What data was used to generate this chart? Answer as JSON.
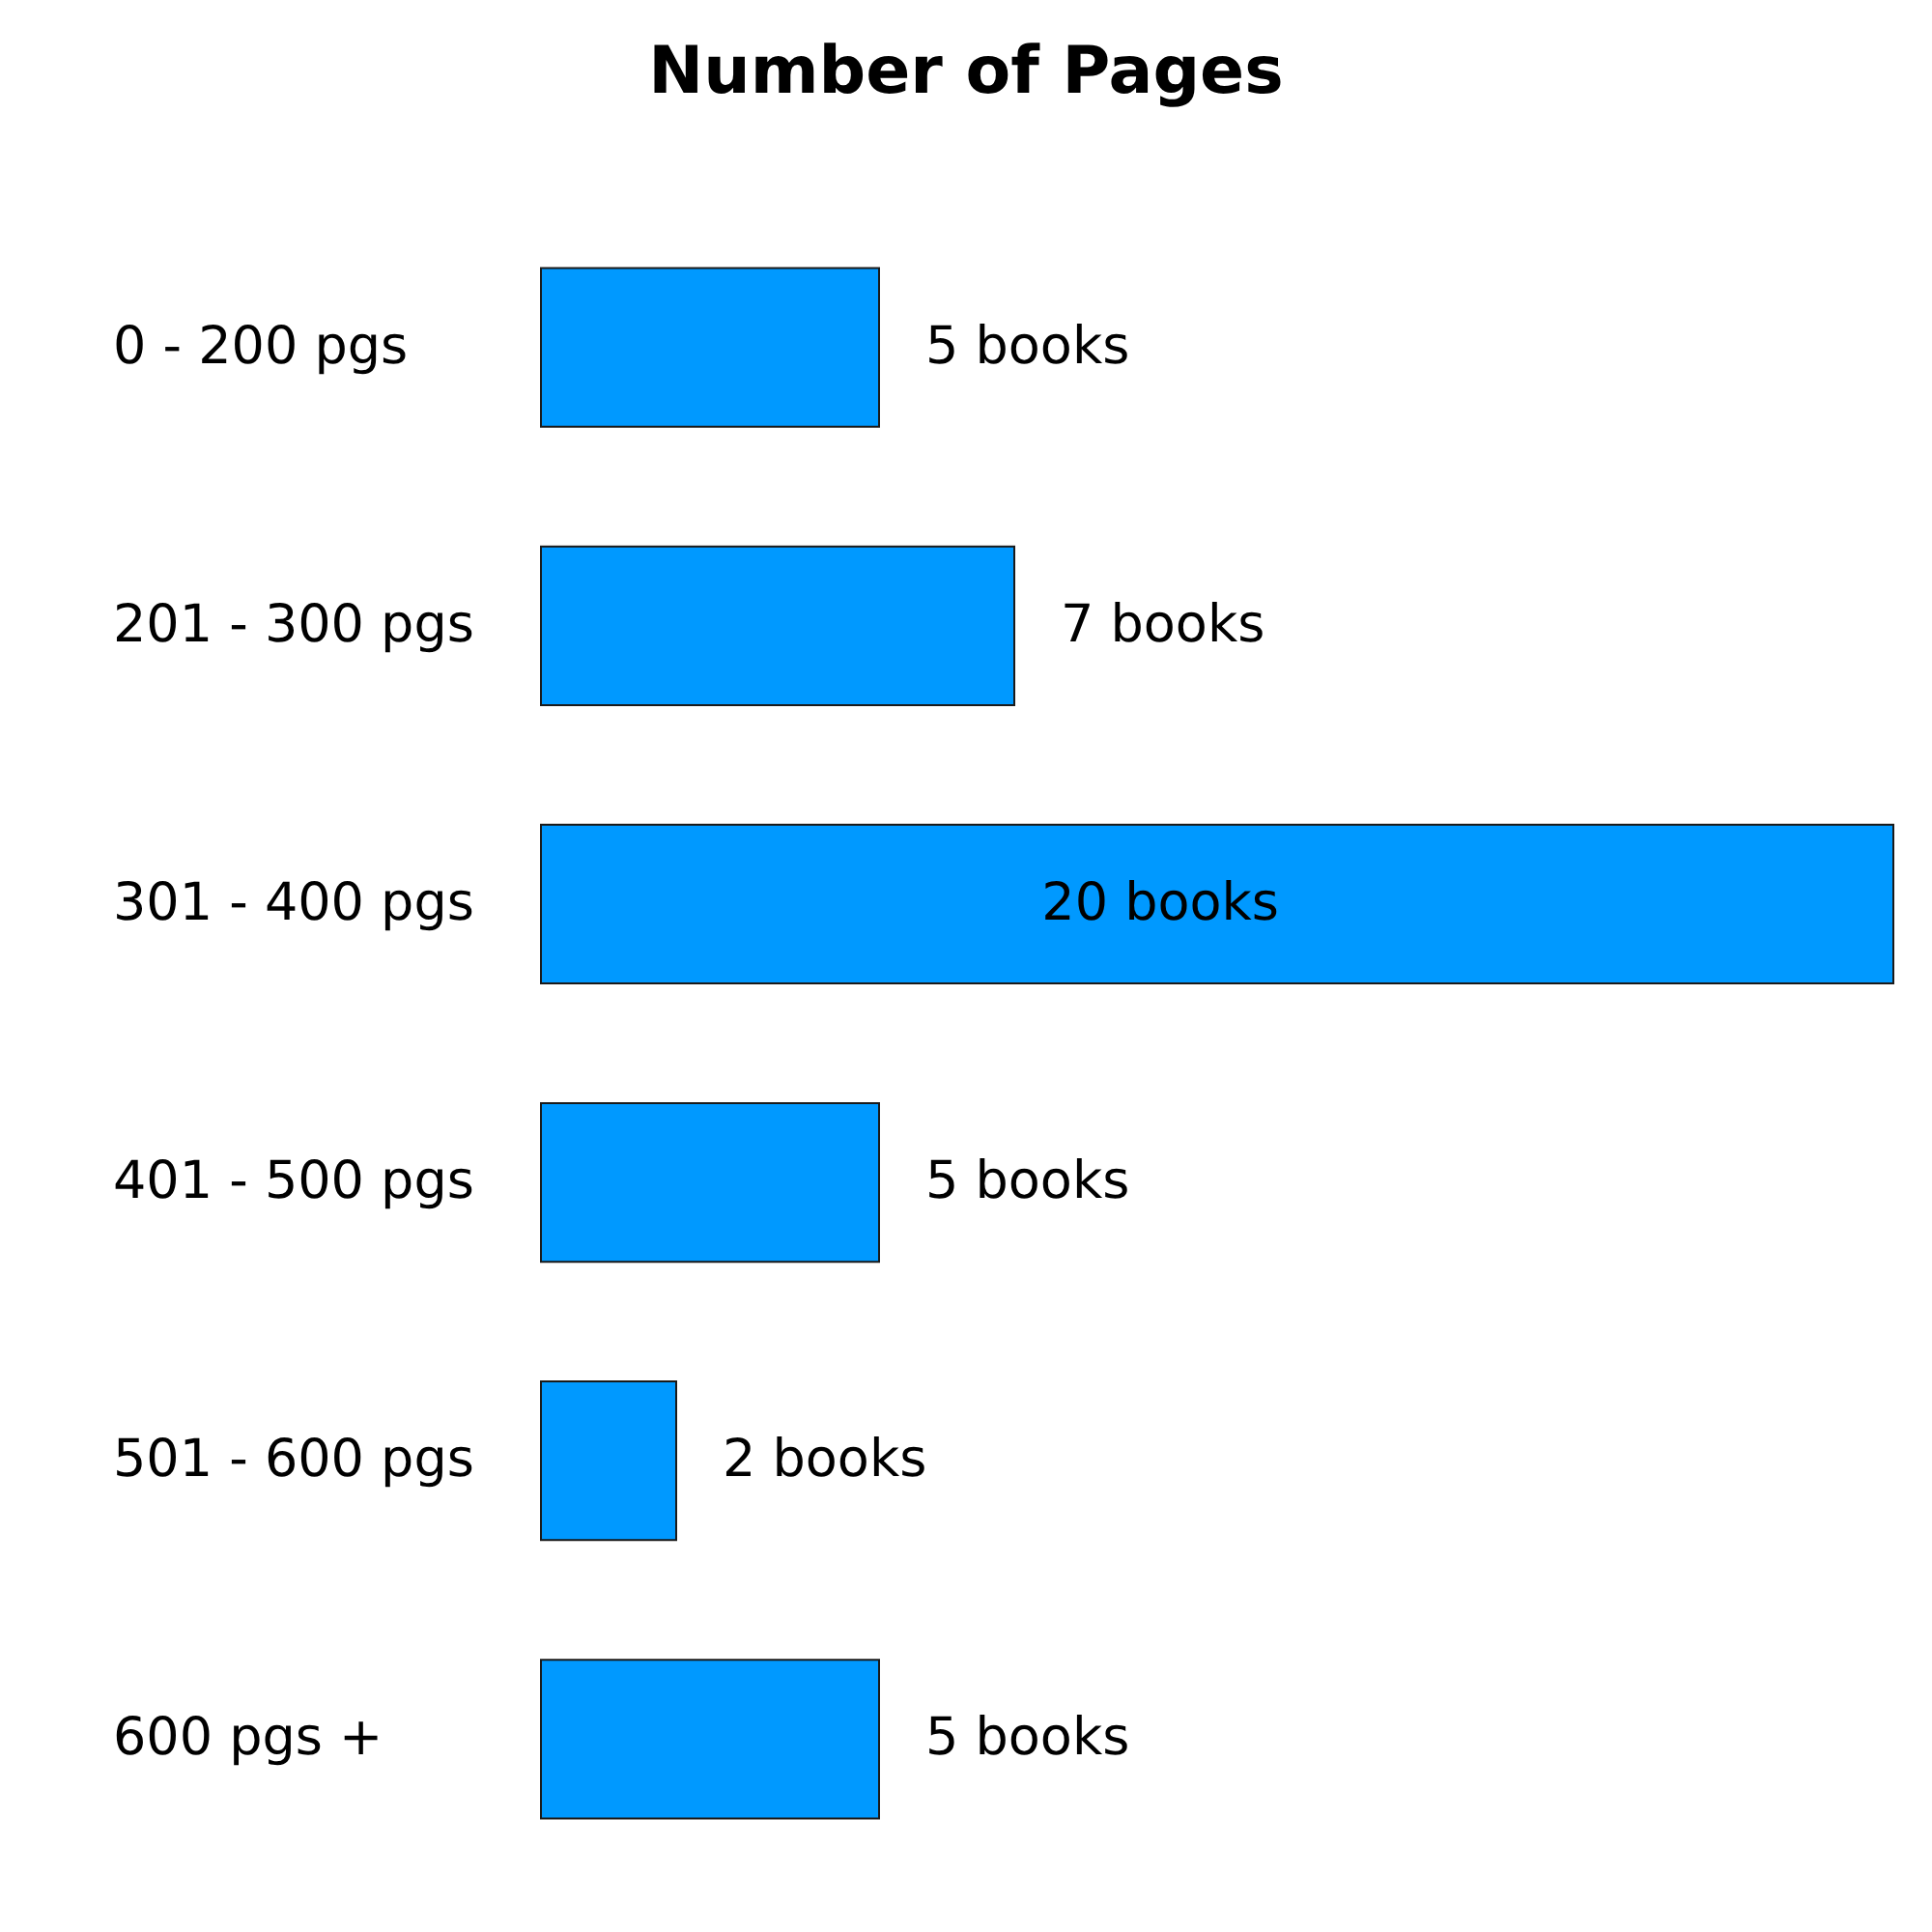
{
  "chart_data": {
    "type": "bar",
    "orientation": "horizontal",
    "title": "Number of Pages",
    "categories": [
      "0 - 200 pgs",
      "201 - 300 pgs",
      "301 - 400 pgs",
      "401 - 500 pgs",
      "501 - 600 pgs",
      "600 pgs +"
    ],
    "values": [
      5,
      7,
      20,
      5,
      2,
      5
    ],
    "value_labels": [
      "5 books",
      "7 books",
      "20 books",
      "5 books",
      "2 books",
      "5 books"
    ],
    "color": "#0099ff"
  }
}
